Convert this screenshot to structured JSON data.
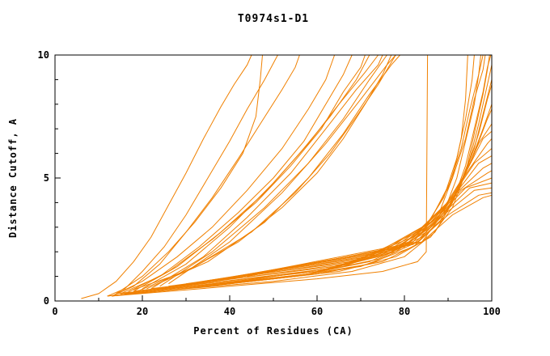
{
  "chart_data": {
    "type": "line",
    "title": "T0974s1-D1",
    "xlabel": "Percent of Residues (CA)",
    "ylabel": "Distance Cutoff, A",
    "xlim": [
      0,
      100
    ],
    "ylim": [
      0,
      10
    ],
    "xticks": [
      0,
      20,
      40,
      60,
      80,
      100
    ],
    "yticks": [
      0,
      5,
      10
    ],
    "x_minor_step": 10,
    "y_minor_step": 1,
    "grid": false,
    "legend": "none",
    "line_color": "#f08000",
    "axis_color": "#000000",
    "series": [
      [
        [
          6,
          0.1
        ],
        [
          10,
          0.3
        ],
        [
          14,
          0.8
        ],
        [
          18,
          1.6
        ],
        [
          22,
          2.6
        ],
        [
          26,
          3.9
        ],
        [
          30,
          5.2
        ],
        [
          34,
          6.6
        ],
        [
          38,
          7.9
        ],
        [
          41,
          8.8
        ],
        [
          44,
          9.6
        ],
        [
          45,
          10
        ]
      ],
      [
        [
          12,
          0.2
        ],
        [
          16,
          0.5
        ],
        [
          20,
          1.2
        ],
        [
          25,
          2.2
        ],
        [
          30,
          3.5
        ],
        [
          35,
          5.0
        ],
        [
          40,
          6.5
        ],
        [
          44,
          7.8
        ],
        [
          48,
          9.0
        ],
        [
          51,
          10
        ]
      ],
      [
        [
          13,
          0.2
        ],
        [
          18,
          0.6
        ],
        [
          24,
          1.5
        ],
        [
          30,
          2.8
        ],
        [
          36,
          4.2
        ],
        [
          42,
          5.8
        ],
        [
          47,
          7.2
        ],
        [
          52,
          8.6
        ],
        [
          55,
          9.5
        ],
        [
          56,
          10
        ]
      ],
      [
        [
          14,
          0.3
        ],
        [
          20,
          1.0
        ],
        [
          26,
          2.0
        ],
        [
          32,
          3.2
        ],
        [
          38,
          4.6
        ],
        [
          43,
          6.0
        ],
        [
          46,
          7.5
        ],
        [
          47,
          9.0
        ],
        [
          47.5,
          10
        ]
      ],
      [
        [
          13,
          0.2
        ],
        [
          20,
          0.8
        ],
        [
          28,
          1.8
        ],
        [
          36,
          3.0
        ],
        [
          44,
          4.5
        ],
        [
          52,
          6.2
        ],
        [
          58,
          7.8
        ],
        [
          62,
          9.0
        ],
        [
          64,
          10
        ]
      ],
      [
        [
          15,
          0.3
        ],
        [
          24,
          1.0
        ],
        [
          33,
          2.2
        ],
        [
          42,
          3.6
        ],
        [
          50,
          5.0
        ],
        [
          57,
          6.5
        ],
        [
          62,
          8.0
        ],
        [
          66,
          9.2
        ],
        [
          68,
          10
        ]
      ],
      [
        [
          16,
          0.3
        ],
        [
          26,
          1.2
        ],
        [
          36,
          2.5
        ],
        [
          46,
          4.0
        ],
        [
          54,
          5.5
        ],
        [
          61,
          7.0
        ],
        [
          66,
          8.5
        ],
        [
          70,
          9.5
        ],
        [
          71,
          10
        ]
      ],
      [
        [
          18,
          0.4
        ],
        [
          28,
          1.4
        ],
        [
          38,
          2.8
        ],
        [
          48,
          4.4
        ],
        [
          56,
          6.0
        ],
        [
          63,
          7.5
        ],
        [
          69,
          9.0
        ],
        [
          72,
          10
        ]
      ],
      [
        [
          20,
          0.5
        ],
        [
          30,
          1.5
        ],
        [
          40,
          3.0
        ],
        [
          50,
          4.8
        ],
        [
          58,
          6.4
        ],
        [
          65,
          8.0
        ],
        [
          71,
          9.3
        ],
        [
          74,
          10
        ]
      ],
      [
        [
          22,
          0.5
        ],
        [
          34,
          1.8
        ],
        [
          44,
          3.4
        ],
        [
          54,
          5.2
        ],
        [
          62,
          7.0
        ],
        [
          69,
          8.6
        ],
        [
          74,
          9.6
        ],
        [
          75,
          10
        ]
      ],
      [
        [
          24,
          0.6
        ],
        [
          36,
          2.0
        ],
        [
          48,
          3.8
        ],
        [
          58,
          5.6
        ],
        [
          66,
          7.4
        ],
        [
          72,
          9.0
        ],
        [
          76,
          10
        ]
      ],
      [
        [
          26,
          0.7
        ],
        [
          40,
          2.4
        ],
        [
          52,
          4.4
        ],
        [
          62,
          6.4
        ],
        [
          70,
          8.2
        ],
        [
          76,
          9.6
        ],
        [
          78,
          10
        ]
      ],
      [
        [
          13,
          0.2
        ],
        [
          40,
          0.6
        ],
        [
          60,
          0.9
        ],
        [
          75,
          1.2
        ],
        [
          83,
          1.6
        ],
        [
          85,
          2.0
        ],
        [
          85.3,
          10
        ]
      ],
      [
        [
          12,
          0.2
        ],
        [
          40,
          0.7
        ],
        [
          60,
          1.1
        ],
        [
          75,
          1.6
        ],
        [
          84,
          2.4
        ],
        [
          89,
          3.6
        ],
        [
          92,
          5.0
        ],
        [
          94,
          6.5
        ],
        [
          96,
          8.0
        ],
        [
          97,
          9.2
        ],
        [
          98,
          10
        ]
      ],
      [
        [
          13,
          0.2
        ],
        [
          45,
          0.8
        ],
        [
          65,
          1.2
        ],
        [
          78,
          1.8
        ],
        [
          86,
          2.6
        ],
        [
          91,
          3.8
        ],
        [
          94,
          5.2
        ],
        [
          96,
          6.8
        ],
        [
          98,
          8.4
        ],
        [
          99,
          9.4
        ],
        [
          99.5,
          10
        ]
      ],
      [
        [
          14,
          0.3
        ],
        [
          50,
          0.9
        ],
        [
          70,
          1.4
        ],
        [
          82,
          2.2
        ],
        [
          88,
          3.2
        ],
        [
          92,
          4.4
        ],
        [
          95,
          5.8
        ],
        [
          97,
          7.2
        ],
        [
          99,
          8.8
        ],
        [
          100,
          9.6
        ]
      ],
      [
        [
          15,
          0.3
        ],
        [
          55,
          1.0
        ],
        [
          72,
          1.5
        ],
        [
          83,
          2.4
        ],
        [
          89,
          3.4
        ],
        [
          93,
          4.8
        ],
        [
          96,
          6.2
        ],
        [
          98,
          7.6
        ],
        [
          100,
          9.0
        ]
      ],
      [
        [
          16,
          0.3
        ],
        [
          58,
          1.1
        ],
        [
          74,
          1.7
        ],
        [
          84,
          2.6
        ],
        [
          90,
          3.8
        ],
        [
          94,
          5.2
        ],
        [
          97,
          6.8
        ],
        [
          99,
          8.2
        ],
        [
          100,
          8.8
        ]
      ],
      [
        [
          18,
          0.4
        ],
        [
          60,
          1.2
        ],
        [
          76,
          1.9
        ],
        [
          85,
          2.8
        ],
        [
          91,
          4.0
        ],
        [
          95,
          5.6
        ],
        [
          98,
          7.0
        ],
        [
          100,
          8.0
        ]
      ],
      [
        [
          20,
          0.4
        ],
        [
          62,
          1.3
        ],
        [
          78,
          2.0
        ],
        [
          86,
          3.0
        ],
        [
          92,
          4.4
        ],
        [
          96,
          6.0
        ],
        [
          99,
          7.4
        ],
        [
          100,
          7.8
        ]
      ],
      [
        [
          22,
          0.5
        ],
        [
          64,
          1.4
        ],
        [
          80,
          2.2
        ],
        [
          87,
          3.2
        ],
        [
          93,
          4.8
        ],
        [
          97,
          6.4
        ],
        [
          100,
          7.2
        ]
      ],
      [
        [
          24,
          0.5
        ],
        [
          66,
          1.5
        ],
        [
          81,
          2.4
        ],
        [
          88,
          3.5
        ],
        [
          94,
          5.2
        ],
        [
          98,
          6.6
        ],
        [
          100,
          6.9
        ]
      ],
      [
        [
          26,
          0.6
        ],
        [
          68,
          1.6
        ],
        [
          82,
          2.6
        ],
        [
          89,
          3.8
        ],
        [
          95,
          5.4
        ],
        [
          99,
          6.4
        ],
        [
          100,
          6.6
        ]
      ],
      [
        [
          28,
          0.6
        ],
        [
          70,
          1.7
        ],
        [
          83,
          2.8
        ],
        [
          90,
          4.0
        ],
        [
          96,
          5.6
        ],
        [
          100,
          6.2
        ]
      ],
      [
        [
          30,
          0.7
        ],
        [
          72,
          1.8
        ],
        [
          84,
          3.0
        ],
        [
          91,
          4.2
        ],
        [
          97,
          5.6
        ],
        [
          100,
          5.9
        ]
      ],
      [
        [
          32,
          0.7
        ],
        [
          74,
          1.9
        ],
        [
          85,
          3.1
        ],
        [
          92,
          4.4
        ],
        [
          98,
          5.4
        ],
        [
          100,
          5.6
        ]
      ],
      [
        [
          34,
          0.8
        ],
        [
          76,
          2.0
        ],
        [
          86,
          3.2
        ],
        [
          93,
          4.5
        ],
        [
          99,
          5.2
        ],
        [
          100,
          5.3
        ]
      ],
      [
        [
          36,
          0.8
        ],
        [
          78,
          2.1
        ],
        [
          87,
          3.3
        ],
        [
          94,
          4.6
        ],
        [
          100,
          5.0
        ]
      ],
      [
        [
          38,
          0.9
        ],
        [
          80,
          2.2
        ],
        [
          88,
          3.4
        ],
        [
          95,
          4.6
        ],
        [
          100,
          4.8
        ]
      ],
      [
        [
          40,
          0.9
        ],
        [
          82,
          2.3
        ],
        [
          89,
          3.5
        ],
        [
          96,
          4.5
        ],
        [
          100,
          4.6
        ]
      ],
      [
        [
          42,
          1.0
        ],
        [
          83,
          2.4
        ],
        [
          90,
          3.5
        ],
        [
          97,
          4.3
        ],
        [
          100,
          4.4
        ]
      ],
      [
        [
          44,
          1.0
        ],
        [
          84,
          2.4
        ],
        [
          91,
          3.5
        ],
        [
          98,
          4.2
        ],
        [
          100,
          4.3
        ]
      ],
      [
        [
          13,
          0.2
        ],
        [
          35,
          0.6
        ],
        [
          55,
          1.0
        ],
        [
          72,
          1.6
        ],
        [
          82,
          2.4
        ],
        [
          88,
          3.6
        ],
        [
          91,
          5.0
        ],
        [
          93,
          6.6
        ],
        [
          94,
          8.2
        ],
        [
          94.5,
          10
        ]
      ],
      [
        [
          14,
          0.3
        ],
        [
          38,
          0.7
        ],
        [
          58,
          1.1
        ],
        [
          74,
          1.8
        ],
        [
          84,
          2.8
        ],
        [
          89,
          4.2
        ],
        [
          92,
          5.8
        ],
        [
          94,
          7.4
        ],
        [
          95.5,
          9.0
        ],
        [
          96,
          10
        ]
      ],
      [
        [
          15,
          0.3
        ],
        [
          42,
          0.8
        ],
        [
          62,
          1.3
        ],
        [
          77,
          2.0
        ],
        [
          85,
          3.0
        ],
        [
          90,
          4.6
        ],
        [
          93,
          6.2
        ],
        [
          95,
          7.8
        ],
        [
          97,
          9.2
        ],
        [
          97.5,
          10
        ]
      ],
      [
        [
          16,
          0.3
        ],
        [
          46,
          0.9
        ],
        [
          66,
          1.4
        ],
        [
          79,
          2.2
        ],
        [
          86,
          3.3
        ],
        [
          91,
          5.0
        ],
        [
          94,
          6.6
        ],
        [
          96,
          8.2
        ],
        [
          98,
          9.4
        ],
        [
          98.5,
          10
        ]
      ],
      [
        [
          12,
          0.2
        ],
        [
          30,
          0.5
        ],
        [
          50,
          0.8
        ],
        [
          68,
          1.2
        ],
        [
          80,
          1.8
        ],
        [
          87,
          2.8
        ],
        [
          91,
          4.0
        ],
        [
          94,
          5.5
        ],
        [
          96,
          7.0
        ],
        [
          98,
          8.5
        ],
        [
          99,
          9.5
        ],
        [
          99.8,
          10
        ]
      ],
      [
        [
          17,
          0.4
        ],
        [
          30,
          1.2
        ],
        [
          42,
          2.4
        ],
        [
          52,
          3.8
        ],
        [
          60,
          5.2
        ],
        [
          66,
          6.6
        ],
        [
          71,
          8.0
        ],
        [
          75,
          9.2
        ],
        [
          77,
          10
        ]
      ],
      [
        [
          19,
          0.4
        ],
        [
          32,
          1.4
        ],
        [
          45,
          2.8
        ],
        [
          55,
          4.4
        ],
        [
          63,
          6.0
        ],
        [
          69,
          7.5
        ],
        [
          74,
          8.8
        ],
        [
          78,
          10
        ]
      ],
      [
        [
          21,
          0.5
        ],
        [
          35,
          1.6
        ],
        [
          48,
          3.2
        ],
        [
          58,
          5.0
        ],
        [
          66,
          6.8
        ],
        [
          72,
          8.4
        ],
        [
          77,
          9.6
        ],
        [
          79,
          10
        ]
      ]
    ]
  }
}
